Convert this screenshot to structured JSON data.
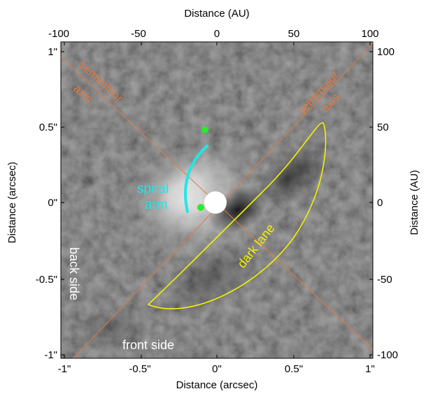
{
  "axes": {
    "top_title": "Distance (AU)",
    "bottom_title": "Distance (arcsec)",
    "left_title": "Distance (arcsec)",
    "right_title": "Distance (AU)",
    "top_ticks": [
      "-100",
      "-50",
      "0",
      "50",
      "100"
    ],
    "bottom_ticks": [
      "-1\"",
      "-0.5\"",
      "0\"",
      "0.5\"",
      "1\""
    ],
    "left_ticks": [
      "1\"",
      "0.5\"",
      "0\"",
      "-0.5\"",
      "-1\""
    ],
    "right_ticks": [
      "100",
      "50",
      "0",
      "-50",
      "-100"
    ]
  },
  "annotations": {
    "semiminor_1": "semiminor",
    "semiminor_2": "axis",
    "semimajor_1": "semimajor",
    "semimajor_2": "axis",
    "spiral_1": "spiral",
    "spiral_2": "arm",
    "dark_lane": "dark lane",
    "back_side": "back side",
    "front_side": "front side"
  },
  "colors": {
    "axis_lines": "#e07a45",
    "annotation_orange": "#e07a45",
    "spiral": "#22e6e6",
    "dark_lane": "#f2f200",
    "dots": "#2bea2b",
    "white_text": "#ffffff"
  }
}
